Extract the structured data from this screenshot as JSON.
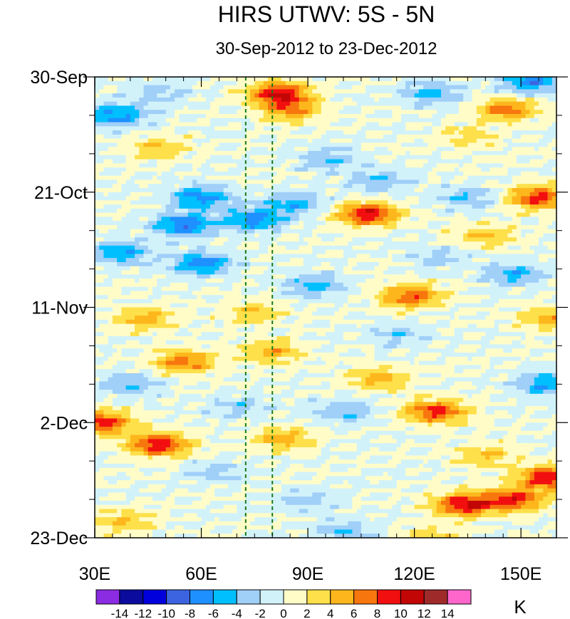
{
  "chart_data": {
    "type": "heatmap",
    "title": "HIRS UTWV: 5S - 5N",
    "subtitle": "30-Sep-2012 to 23-Dec-2012",
    "x": {
      "range": [
        30,
        160
      ],
      "ticks": [
        30,
        60,
        90,
        120,
        150
      ],
      "tick_labels": [
        "30E",
        "60E",
        "90E",
        "120E",
        "150E"
      ],
      "minor_step": 5
    },
    "y": {
      "range_days": [
        0,
        84
      ],
      "ticks": [
        0,
        21,
        42,
        63,
        84
      ],
      "tick_labels": [
        "30-Sep",
        "21-Oct",
        "11-Nov",
        "2-Dec",
        "23-Dec"
      ],
      "minor_step_days": 7,
      "direction": "time increases downward"
    },
    "reference_lines": {
      "longitudes": [
        72.5,
        80
      ],
      "color": "#1a7a1a",
      "style": "dashed"
    },
    "colorbar": {
      "levels": [
        -14,
        -12,
        -10,
        -8,
        -6,
        -4,
        -2,
        0,
        2,
        4,
        6,
        8,
        10,
        12,
        14
      ],
      "tick_labels": [
        "-14",
        "-12",
        "-10",
        "-8",
        "-6",
        "-4",
        "-2",
        "0",
        "2",
        "4",
        "6",
        "8",
        "10",
        "12",
        "14"
      ],
      "colors": [
        "#8b2be2",
        "#0b0b9e",
        "#0000dd",
        "#3c64e0",
        "#1e90ff",
        "#00bfff",
        "#a0cff8",
        "#d2f2fa",
        "#fffcc8",
        "#fde04a",
        "#fdb71c",
        "#f7760e",
        "#f20f0f",
        "#c20606",
        "#9e2a2a",
        "#ff66cc"
      ],
      "units": "K"
    },
    "features": [
      {
        "lon": 82,
        "day": 3,
        "value": 10
      },
      {
        "lon": 85,
        "day": 6,
        "value": 6
      },
      {
        "lon": 36,
        "day": 7,
        "value": -7
      },
      {
        "lon": 48,
        "day": 3,
        "value": -3
      },
      {
        "lon": 146,
        "day": 6,
        "value": 7
      },
      {
        "lon": 153,
        "day": 1,
        "value": -7
      },
      {
        "lon": 125,
        "day": 3,
        "value": -5
      },
      {
        "lon": 135,
        "day": 11,
        "value": 3
      },
      {
        "lon": 107,
        "day": 25,
        "value": 10
      },
      {
        "lon": 155,
        "day": 22,
        "value": 9
      },
      {
        "lon": 60,
        "day": 22,
        "value": -7
      },
      {
        "lon": 55,
        "day": 27,
        "value": -8
      },
      {
        "lon": 75,
        "day": 26,
        "value": -7
      },
      {
        "lon": 86,
        "day": 23,
        "value": -5
      },
      {
        "lon": 60,
        "day": 34,
        "value": -7
      },
      {
        "lon": 37,
        "day": 32,
        "value": -6
      },
      {
        "lon": 92,
        "day": 38,
        "value": -5
      },
      {
        "lon": 140,
        "day": 29,
        "value": 4
      },
      {
        "lon": 110,
        "day": 19,
        "value": -4
      },
      {
        "lon": 135,
        "day": 22,
        "value": -4
      },
      {
        "lon": 148,
        "day": 36,
        "value": -5
      },
      {
        "lon": 127,
        "day": 33,
        "value": -3
      },
      {
        "lon": 119,
        "day": 40,
        "value": 8
      },
      {
        "lon": 55,
        "day": 52,
        "value": 7
      },
      {
        "lon": 44,
        "day": 44,
        "value": 5
      },
      {
        "lon": 75,
        "day": 43,
        "value": 4
      },
      {
        "lon": 80,
        "day": 50,
        "value": 5
      },
      {
        "lon": 126,
        "day": 61,
        "value": 9
      },
      {
        "lon": 110,
        "day": 55,
        "value": 5
      },
      {
        "lon": 32,
        "day": 63,
        "value": 9
      },
      {
        "lon": 48,
        "day": 67,
        "value": 10
      },
      {
        "lon": 83,
        "day": 66,
        "value": 5
      },
      {
        "lon": 134,
        "day": 78,
        "value": 10
      },
      {
        "lon": 148,
        "day": 77,
        "value": 9
      },
      {
        "lon": 158,
        "day": 73,
        "value": 10
      },
      {
        "lon": 140,
        "day": 69,
        "value": 4
      },
      {
        "lon": 157,
        "day": 56,
        "value": -6
      },
      {
        "lon": 100,
        "day": 61,
        "value": -4
      },
      {
        "lon": 38,
        "day": 81,
        "value": 4
      },
      {
        "lon": 65,
        "day": 72,
        "value": -3
      },
      {
        "lon": 90,
        "day": 77,
        "value": -3
      },
      {
        "lon": 158,
        "day": 44,
        "value": 5
      },
      {
        "lon": 48,
        "day": 13,
        "value": 4
      },
      {
        "lon": 115,
        "day": 47,
        "value": -3
      },
      {
        "lon": 70,
        "day": 60,
        "value": -3
      },
      {
        "lon": 100,
        "day": 83,
        "value": -4
      },
      {
        "lon": 125,
        "day": 84,
        "value": 4
      },
      {
        "lon": 40,
        "day": 56,
        "value": -4
      },
      {
        "lon": 96,
        "day": 15,
        "value": -4
      }
    ]
  }
}
